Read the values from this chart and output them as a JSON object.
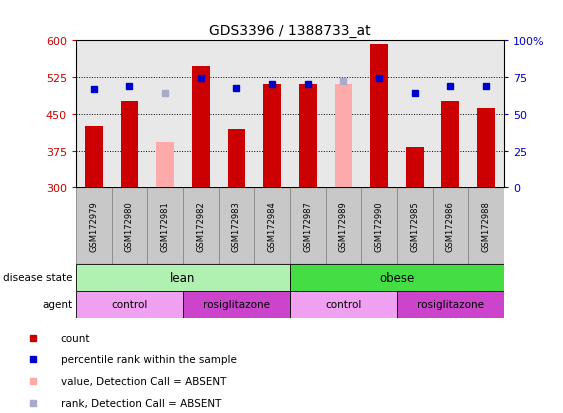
{
  "title": "GDS3396 / 1388733_at",
  "samples": [
    "GSM172979",
    "GSM172980",
    "GSM172981",
    "GSM172982",
    "GSM172983",
    "GSM172984",
    "GSM172987",
    "GSM172989",
    "GSM172990",
    "GSM172985",
    "GSM172986",
    "GSM172988"
  ],
  "count_values": [
    425,
    477,
    null,
    548,
    420,
    510,
    510,
    null,
    592,
    383,
    477,
    462
  ],
  "count_absent": [
    null,
    null,
    392,
    null,
    null,
    null,
    null,
    510,
    null,
    null,
    null,
    null
  ],
  "rank_values": [
    500,
    507,
    null,
    523,
    503,
    510,
    510,
    null,
    523,
    493,
    507,
    507
  ],
  "rank_absent": [
    null,
    null,
    493,
    null,
    null,
    null,
    null,
    517,
    null,
    null,
    null,
    null
  ],
  "ylim_left": [
    300,
    600
  ],
  "ylim_right": [
    0,
    100
  ],
  "yticks_left": [
    300,
    375,
    450,
    525,
    600
  ],
  "yticks_right": [
    0,
    25,
    50,
    75,
    100
  ],
  "bar_width": 0.5,
  "bar_color_count": "#cc0000",
  "bar_color_absent": "#ffaaaa",
  "marker_color_rank": "#0000cc",
  "marker_color_rank_absent": "#aaaacc",
  "disease_lean_color": "#b0f0b0",
  "disease_obese_color": "#44dd44",
  "agent_control_color": "#f0a0f0",
  "agent_rosi_color": "#cc44cc",
  "xlabel_color": "#cc0000",
  "ylabel_right_color": "#0000cc",
  "background_color": "#ffffff",
  "plot_bg_color": "#e8e8e8",
  "sample_box_color": "#c8c8c8",
  "legend_items": [
    {
      "label": "count",
      "color": "#cc0000"
    },
    {
      "label": "percentile rank within the sample",
      "color": "#0000cc"
    },
    {
      "label": "value, Detection Call = ABSENT",
      "color": "#ffaaaa"
    },
    {
      "label": "rank, Detection Call = ABSENT",
      "color": "#aaaacc"
    }
  ]
}
